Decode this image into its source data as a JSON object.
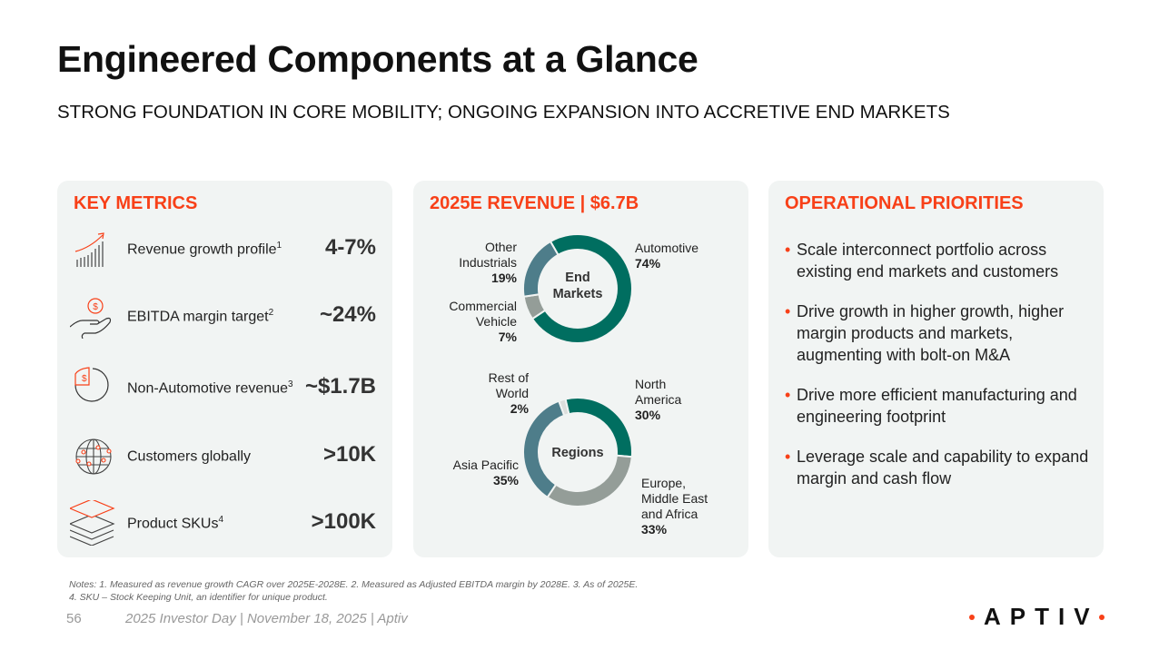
{
  "title": "Engineered Components at a Glance",
  "subtitle": "STRONG FOUNDATION IN CORE MOBILITY; ONGOING EXPANSION INTO ACCRETIVE END MARKETS",
  "colors": {
    "accent": "#f84018",
    "teal": "#006e60",
    "steel": "#4e7d8a",
    "grey": "#949d98",
    "light": "#dcdedc",
    "panel": "#f1f4f3"
  },
  "key_metrics": {
    "heading": "KEY METRICS",
    "items": [
      {
        "icon": "growth-chart-icon",
        "label": "Revenue growth profile",
        "sup": "1",
        "value": "4-7%"
      },
      {
        "icon": "hand-coin-icon",
        "label": "EBITDA margin target",
        "sup": "2",
        "value": "~24%"
      },
      {
        "icon": "pie-dollar-icon",
        "label": "Non-Automotive revenue",
        "sup": "3",
        "value": "~$1.7B"
      },
      {
        "icon": "globe-icon",
        "label": "Customers globally",
        "sup": "",
        "value": ">10K"
      },
      {
        "icon": "layers-icon",
        "label": "Product SKUs",
        "sup": "4",
        "value": ">100K"
      }
    ]
  },
  "revenue": {
    "heading": "2025E REVENUE | $6.7B"
  },
  "chart_data": [
    {
      "type": "pie",
      "title": "End Markets",
      "title_line1": "End",
      "title_line2": "Markets",
      "donut": true,
      "slices": [
        {
          "name": "Automotive",
          "value": 74,
          "label": "74%",
          "color": "#006e60"
        },
        {
          "name": "Commercial Vehicle",
          "value": 7,
          "label": "7%",
          "color": "#949d98"
        },
        {
          "name": "Other Industrials",
          "value": 19,
          "label": "19%",
          "color": "#4e7d8a"
        }
      ]
    },
    {
      "type": "pie",
      "title": "Regions",
      "donut": true,
      "slices": [
        {
          "name": "North America",
          "value": 30,
          "label": "30%",
          "color": "#006e60"
        },
        {
          "name": "Europe, Middle East and Africa",
          "value": 33,
          "label": "33%",
          "color": "#949d98"
        },
        {
          "name": "Asia Pacific",
          "value": 35,
          "label": "35%",
          "color": "#4e7d8a"
        },
        {
          "name": "Rest of World",
          "value": 2,
          "label": "2%",
          "color": "#dcdedc"
        }
      ]
    }
  ],
  "labels": {
    "other1": "Other",
    "other2": "Industrials",
    "cv1": "Commercial",
    "cv2": "Vehicle",
    "na1": "North",
    "na2": "America",
    "row1": "Rest of",
    "row2": "World",
    "emea1": "Europe,",
    "emea2": "Middle East",
    "emea3": "and Africa"
  },
  "priorities": {
    "heading": "OPERATIONAL PRIORITIES",
    "items": [
      "Scale interconnect portfolio across existing end markets and customers",
      "Drive growth in higher growth, higher margin products and markets, augmenting with bolt-on M&A",
      "Drive more efficient manufacturing and engineering footprint",
      "Leverage scale and capability to expand margin and cash flow"
    ]
  },
  "notes": {
    "line1": "Notes: 1. Measured as revenue growth CAGR over 2025E-2028E. 2. Measured as Adjusted EBITDA margin by 2028E. 3. As of 2025E.",
    "line2": "4. SKU – Stock Keeping Unit, an identifier for unique product."
  },
  "footer": {
    "page": "56",
    "text": "2025 Investor Day | November 18, 2025 | Aptiv",
    "logo": "APTIV"
  }
}
